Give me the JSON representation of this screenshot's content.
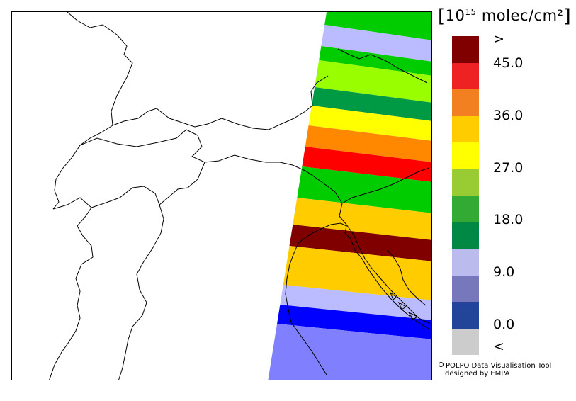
{
  "legend": {
    "unit_prefix": "[",
    "unit_base": "10",
    "unit_exp": "15",
    "unit_rest": " molec/cm²",
    "unit_suffix": "]",
    "colors": [
      "#800000",
      "#ee2222",
      "#f28020",
      "#ffcc00",
      "#ffff00",
      "#99cc33",
      "#33aa33",
      "#008844",
      "#bbbbee",
      "#7777bb",
      "#224499",
      "#cccccc"
    ],
    "ticks": [
      ">",
      "45.0",
      "36.0",
      "27.0",
      "18.0",
      "9.0",
      "0.0",
      "<"
    ]
  },
  "swath_colors": [
    "#00cc00",
    "#bbbbff",
    "#00cc00",
    "#99ff00",
    "#009944",
    "#ffff00",
    "#ff8800",
    "#ff0000",
    "#00cc00",
    "#ffcc00",
    "#800000",
    "#ffcc00",
    "#bbbbff",
    "#0000ff",
    "#8080ff"
  ],
  "credit": {
    "line1": "POLPO Data Visualisation Tool",
    "line2": "designed by EMPA"
  }
}
